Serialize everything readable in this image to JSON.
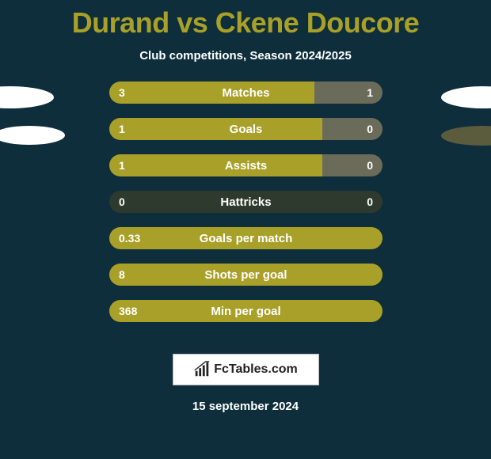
{
  "title": "Durand vs Ckene Doucore",
  "subtitle": "Club competitions, Season 2024/2025",
  "date": "15 september 2024",
  "brand": "FcTables.com",
  "colors": {
    "background": "#0d2e3a",
    "title": "#a9a029",
    "bar_accent": "#a9a029",
    "bar_muted_dark": "#2f3a2e",
    "bar_muted_gray": "#6b6b5a",
    "text": "#ffffff"
  },
  "bars": [
    {
      "name": "Matches",
      "left": "3",
      "right": "1",
      "left_pct": 75,
      "right_pct": 25,
      "left_color": "#a9a029",
      "right_color": "#6b6b5a"
    },
    {
      "name": "Goals",
      "left": "1",
      "right": "0",
      "left_pct": 78,
      "right_pct": 22,
      "left_color": "#a9a029",
      "right_color": "#6b6b5a"
    },
    {
      "name": "Assists",
      "left": "1",
      "right": "0",
      "left_pct": 78,
      "right_pct": 22,
      "left_color": "#a9a029",
      "right_color": "#6b6b5a"
    },
    {
      "name": "Hattricks",
      "left": "0",
      "right": "0",
      "left_pct": 0,
      "right_pct": 0,
      "left_color": "#a9a029",
      "right_color": "#6b6b5a",
      "bg_color": "#2f3a2e"
    },
    {
      "name": "Goals per match",
      "left": "0.33",
      "right": "",
      "left_pct": 100,
      "right_pct": 0,
      "left_color": "#a9a029",
      "right_color": "#6b6b5a"
    },
    {
      "name": "Shots per goal",
      "left": "8",
      "right": "",
      "left_pct": 100,
      "right_pct": 0,
      "left_color": "#a9a029",
      "right_color": "#6b6b5a"
    },
    {
      "name": "Min per goal",
      "left": "368",
      "right": "",
      "left_pct": 100,
      "right_pct": 0,
      "left_color": "#a9a029",
      "right_color": "#6b6b5a"
    }
  ]
}
